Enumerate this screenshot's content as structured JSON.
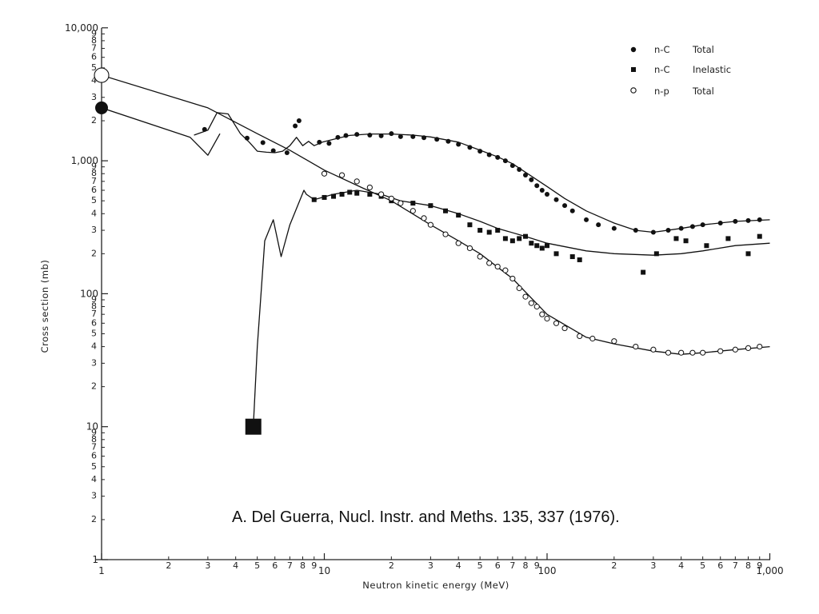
{
  "chart_data": {
    "type": "scatter",
    "xlabel": "Neutron kinetic energy (MeV)",
    "ylabel": "Cross section (mb)",
    "x_scale": "log",
    "y_scale": "log",
    "xlim": [
      1,
      1000
    ],
    "ylim": [
      1,
      10000
    ],
    "x_major_ticks": [
      {
        "v": 1,
        "label": "1"
      },
      {
        "v": 10,
        "label": "10"
      },
      {
        "v": 100,
        "label": "100"
      },
      {
        "v": 1000,
        "label": "1,000"
      }
    ],
    "y_major_ticks": [
      {
        "v": 1,
        "label": "1"
      },
      {
        "v": 10,
        "label": "10"
      },
      {
        "v": 100,
        "label": "100"
      },
      {
        "v": 1000,
        "label": "1,000"
      },
      {
        "v": 10000,
        "label": "10,000"
      }
    ],
    "minor_tick_labels": [
      "2",
      "3",
      "4",
      "5",
      "6",
      "7",
      "8",
      "9"
    ],
    "grid": false,
    "legend_position": "top-right",
    "series": [
      {
        "name": "n-C Total",
        "marker": "filled-circle",
        "points": [
          [
            2.9,
            1720
          ],
          [
            4.5,
            1480
          ],
          [
            5.3,
            1370
          ],
          [
            5.9,
            1190
          ],
          [
            6.8,
            1150
          ],
          [
            7.4,
            1830
          ],
          [
            7.7,
            2000
          ],
          [
            9.5,
            1380
          ],
          [
            10.5,
            1350
          ],
          [
            11.5,
            1500
          ],
          [
            12.5,
            1550
          ],
          [
            14,
            1580
          ],
          [
            16,
            1560
          ],
          [
            18,
            1540
          ],
          [
            20,
            1600
          ],
          [
            22,
            1520
          ],
          [
            25,
            1520
          ],
          [
            28,
            1490
          ],
          [
            32,
            1450
          ],
          [
            36,
            1400
          ],
          [
            40,
            1330
          ],
          [
            45,
            1260
          ],
          [
            50,
            1180
          ],
          [
            55,
            1110
          ],
          [
            60,
            1060
          ],
          [
            65,
            1000
          ],
          [
            70,
            920
          ],
          [
            75,
            860
          ],
          [
            80,
            780
          ],
          [
            85,
            720
          ],
          [
            90,
            650
          ],
          [
            95,
            600
          ],
          [
            100,
            560
          ],
          [
            110,
            510
          ],
          [
            120,
            460
          ],
          [
            130,
            420
          ],
          [
            150,
            360
          ],
          [
            170,
            330
          ],
          [
            200,
            310
          ],
          [
            250,
            300
          ],
          [
            300,
            290
          ],
          [
            350,
            300
          ],
          [
            400,
            310
          ],
          [
            450,
            320
          ],
          [
            500,
            330
          ],
          [
            600,
            340
          ],
          [
            700,
            350
          ],
          [
            800,
            355
          ],
          [
            900,
            360
          ]
        ],
        "curve": [
          [
            2.6,
            1560
          ],
          [
            3.0,
            1700
          ],
          [
            3.3,
            2300
          ],
          [
            3.7,
            2250
          ],
          [
            4.2,
            1600
          ],
          [
            4.6,
            1380
          ],
          [
            5.0,
            1180
          ],
          [
            5.5,
            1160
          ],
          [
            6.0,
            1150
          ],
          [
            6.5,
            1180
          ],
          [
            7.0,
            1300
          ],
          [
            7.5,
            1500
          ],
          [
            8.0,
            1300
          ],
          [
            8.5,
            1400
          ],
          [
            9.0,
            1300
          ],
          [
            9.8,
            1380
          ],
          [
            11,
            1450
          ],
          [
            13,
            1550
          ],
          [
            16,
            1590
          ],
          [
            20,
            1590
          ],
          [
            25,
            1560
          ],
          [
            30,
            1510
          ],
          [
            40,
            1380
          ],
          [
            50,
            1200
          ],
          [
            60,
            1070
          ],
          [
            70,
            950
          ],
          [
            80,
            820
          ],
          [
            100,
            640
          ],
          [
            120,
            520
          ],
          [
            150,
            420
          ],
          [
            200,
            340
          ],
          [
            250,
            300
          ],
          [
            300,
            290
          ],
          [
            400,
            310
          ],
          [
            500,
            330
          ],
          [
            700,
            350
          ],
          [
            1000,
            360
          ]
        ]
      },
      {
        "name": "n-C Inelastic",
        "marker": "filled-square",
        "points": [
          [
            4.8,
            10
          ],
          [
            9,
            510
          ],
          [
            10,
            530
          ],
          [
            11,
            540
          ],
          [
            12,
            560
          ],
          [
            13,
            580
          ],
          [
            14,
            570
          ],
          [
            16,
            560
          ],
          [
            18,
            540
          ],
          [
            20,
            500
          ],
          [
            25,
            480
          ],
          [
            30,
            460
          ],
          [
            35,
            420
          ],
          [
            40,
            390
          ],
          [
            45,
            330
          ],
          [
            50,
            300
          ],
          [
            55,
            290
          ],
          [
            60,
            300
          ],
          [
            65,
            260
          ],
          [
            70,
            250
          ],
          [
            75,
            260
          ],
          [
            80,
            270
          ],
          [
            85,
            240
          ],
          [
            90,
            230
          ],
          [
            95,
            220
          ],
          [
            100,
            230
          ],
          [
            110,
            200
          ],
          [
            130,
            190
          ],
          [
            140,
            180
          ],
          [
            270,
            145
          ],
          [
            310,
            200
          ],
          [
            380,
            260
          ],
          [
            420,
            250
          ],
          [
            520,
            230
          ],
          [
            650,
            260
          ],
          [
            800,
            200
          ],
          [
            900,
            270
          ]
        ],
        "curve": [
          [
            4.8,
            10
          ],
          [
            5.0,
            40
          ],
          [
            5.4,
            250
          ],
          [
            5.9,
            360
          ],
          [
            6.4,
            190
          ],
          [
            7.0,
            330
          ],
          [
            8.1,
            600
          ],
          [
            8.3,
            560
          ],
          [
            9,
            510
          ],
          [
            11,
            560
          ],
          [
            14,
            600
          ],
          [
            18,
            560
          ],
          [
            22,
            500
          ],
          [
            30,
            460
          ],
          [
            40,
            400
          ],
          [
            50,
            350
          ],
          [
            60,
            310
          ],
          [
            80,
            270
          ],
          [
            100,
            240
          ],
          [
            150,
            210
          ],
          [
            200,
            200
          ],
          [
            300,
            195
          ],
          [
            400,
            200
          ],
          [
            500,
            210
          ],
          [
            700,
            230
          ],
          [
            1000,
            240
          ]
        ]
      },
      {
        "name": "n-p Total",
        "marker": "open-circle",
        "points": [
          [
            1,
            4400
          ],
          [
            10,
            800
          ],
          [
            12,
            780
          ],
          [
            14,
            700
          ],
          [
            16,
            630
          ],
          [
            18,
            560
          ],
          [
            20,
            520
          ],
          [
            22,
            480
          ],
          [
            25,
            420
          ],
          [
            28,
            370
          ],
          [
            30,
            330
          ],
          [
            35,
            280
          ],
          [
            40,
            240
          ],
          [
            45,
            220
          ],
          [
            50,
            190
          ],
          [
            55,
            170
          ],
          [
            60,
            160
          ],
          [
            65,
            150
          ],
          [
            70,
            130
          ],
          [
            75,
            110
          ],
          [
            80,
            95
          ],
          [
            85,
            85
          ],
          [
            90,
            80
          ],
          [
            95,
            70
          ],
          [
            100,
            65
          ],
          [
            110,
            60
          ],
          [
            120,
            55
          ],
          [
            140,
            48
          ],
          [
            160,
            46
          ],
          [
            200,
            44
          ],
          [
            250,
            40
          ],
          [
            300,
            38
          ],
          [
            350,
            36
          ],
          [
            400,
            36
          ],
          [
            450,
            36
          ],
          [
            500,
            36
          ],
          [
            600,
            37
          ],
          [
            700,
            38
          ],
          [
            800,
            39
          ],
          [
            900,
            40
          ]
        ],
        "curve": [
          [
            1,
            4400
          ],
          [
            3,
            2500
          ],
          [
            5,
            1600
          ],
          [
            7,
            1200
          ],
          [
            10,
            850
          ],
          [
            15,
            620
          ],
          [
            20,
            500
          ],
          [
            30,
            330
          ],
          [
            40,
            250
          ],
          [
            50,
            200
          ],
          [
            70,
            130
          ],
          [
            100,
            70
          ],
          [
            150,
            47
          ],
          [
            200,
            42
          ],
          [
            300,
            37
          ],
          [
            400,
            35
          ],
          [
            500,
            36
          ],
          [
            700,
            38
          ],
          [
            1000,
            40
          ]
        ]
      },
      {
        "name": "",
        "marker": "none",
        "points": [],
        "curve": [
          [
            1,
            2500
          ],
          [
            2.5,
            1500
          ],
          [
            3.0,
            1100
          ],
          [
            3.4,
            1600
          ]
        ]
      }
    ]
  },
  "legend": [
    {
      "symbol": "n-C",
      "label": "Total",
      "marker": "filled-circle"
    },
    {
      "symbol": "n-C",
      "label": "Inelastic",
      "marker": "filled-square"
    },
    {
      "symbol": "n-p",
      "label": "Total",
      "marker": "open-circle"
    }
  ],
  "citation": "A. Del Guerra, Nucl. Instr. and Meths. 135, 337 (1976)."
}
